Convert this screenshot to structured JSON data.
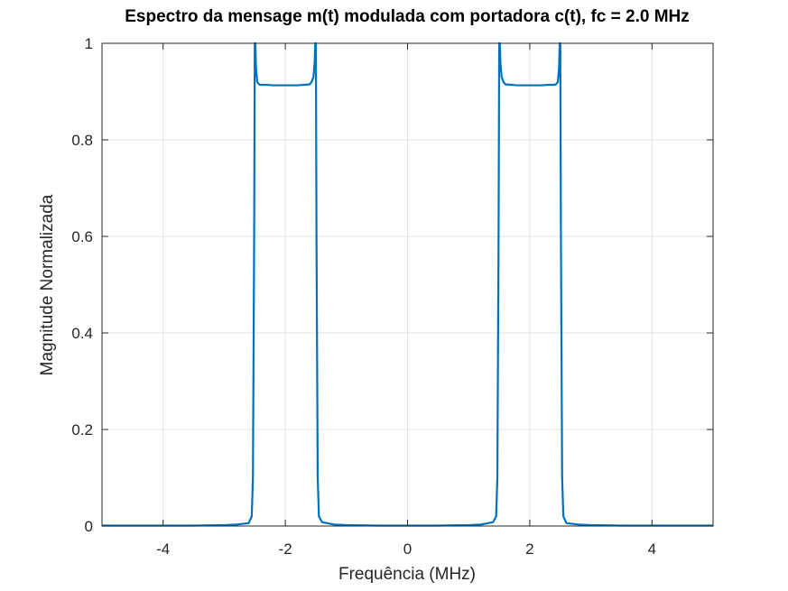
{
  "chart_data": {
    "type": "line",
    "title": "Espectro da mensage m(t) modulada com portadora c(t), fc = 2.0 MHz",
    "xlabel": "Frequência (MHz)",
    "ylabel": "Magnitude Normalizada",
    "xlim": [
      -5,
      5
    ],
    "ylim": [
      0,
      1
    ],
    "xticks": [
      -4,
      -2,
      0,
      2,
      4
    ],
    "xtick_labels": [
      "-4",
      "-2",
      "0",
      "2",
      "4"
    ],
    "yticks": [
      0,
      0.2,
      0.4,
      0.6,
      0.8,
      1
    ],
    "ytick_labels": [
      "0",
      "0.2",
      "0.4",
      "0.6",
      "0.8",
      "1"
    ],
    "grid": true,
    "series": [
      {
        "color": "#0072BD",
        "x": [
          -5,
          -3.5,
          -3,
          -2.8,
          -2.6,
          -2.55,
          -2.53,
          -2.51,
          -2.5,
          -2.49,
          -2.48,
          -2.46,
          -2.43,
          -2.4,
          -2.3,
          -2.2,
          -2.1,
          -2.0,
          -1.9,
          -1.8,
          -1.7,
          -1.6,
          -1.57,
          -1.54,
          -1.52,
          -1.51,
          -1.5,
          -1.49,
          -1.47,
          -1.45,
          -1.4,
          -1.2,
          -1.0,
          -0.5,
          0,
          0.5,
          1.0,
          1.2,
          1.4,
          1.45,
          1.47,
          1.49,
          1.5,
          1.51,
          1.52,
          1.54,
          1.57,
          1.6,
          1.7,
          1.8,
          1.9,
          2.0,
          2.1,
          2.2,
          2.3,
          2.4,
          2.43,
          2.46,
          2.48,
          2.49,
          2.5,
          2.51,
          2.53,
          2.55,
          2.6,
          2.8,
          3.0,
          3.5,
          5
        ],
        "y": [
          0.001,
          0.001,
          0.002,
          0.003,
          0.006,
          0.02,
          0.1,
          0.6,
          1.0,
          1.0,
          0.95,
          0.92,
          0.915,
          0.914,
          0.914,
          0.913,
          0.913,
          0.913,
          0.913,
          0.913,
          0.914,
          0.915,
          0.92,
          0.93,
          0.96,
          1.0,
          1.0,
          0.6,
          0.1,
          0.02,
          0.008,
          0.003,
          0.002,
          0.001,
          0.001,
          0.001,
          0.002,
          0.003,
          0.008,
          0.02,
          0.1,
          0.6,
          1.0,
          1.0,
          0.96,
          0.93,
          0.92,
          0.915,
          0.914,
          0.913,
          0.913,
          0.913,
          0.913,
          0.913,
          0.914,
          0.914,
          0.915,
          0.92,
          0.95,
          1.0,
          1.0,
          0.6,
          0.1,
          0.02,
          0.006,
          0.003,
          0.002,
          0.001,
          0.001
        ]
      }
    ]
  }
}
